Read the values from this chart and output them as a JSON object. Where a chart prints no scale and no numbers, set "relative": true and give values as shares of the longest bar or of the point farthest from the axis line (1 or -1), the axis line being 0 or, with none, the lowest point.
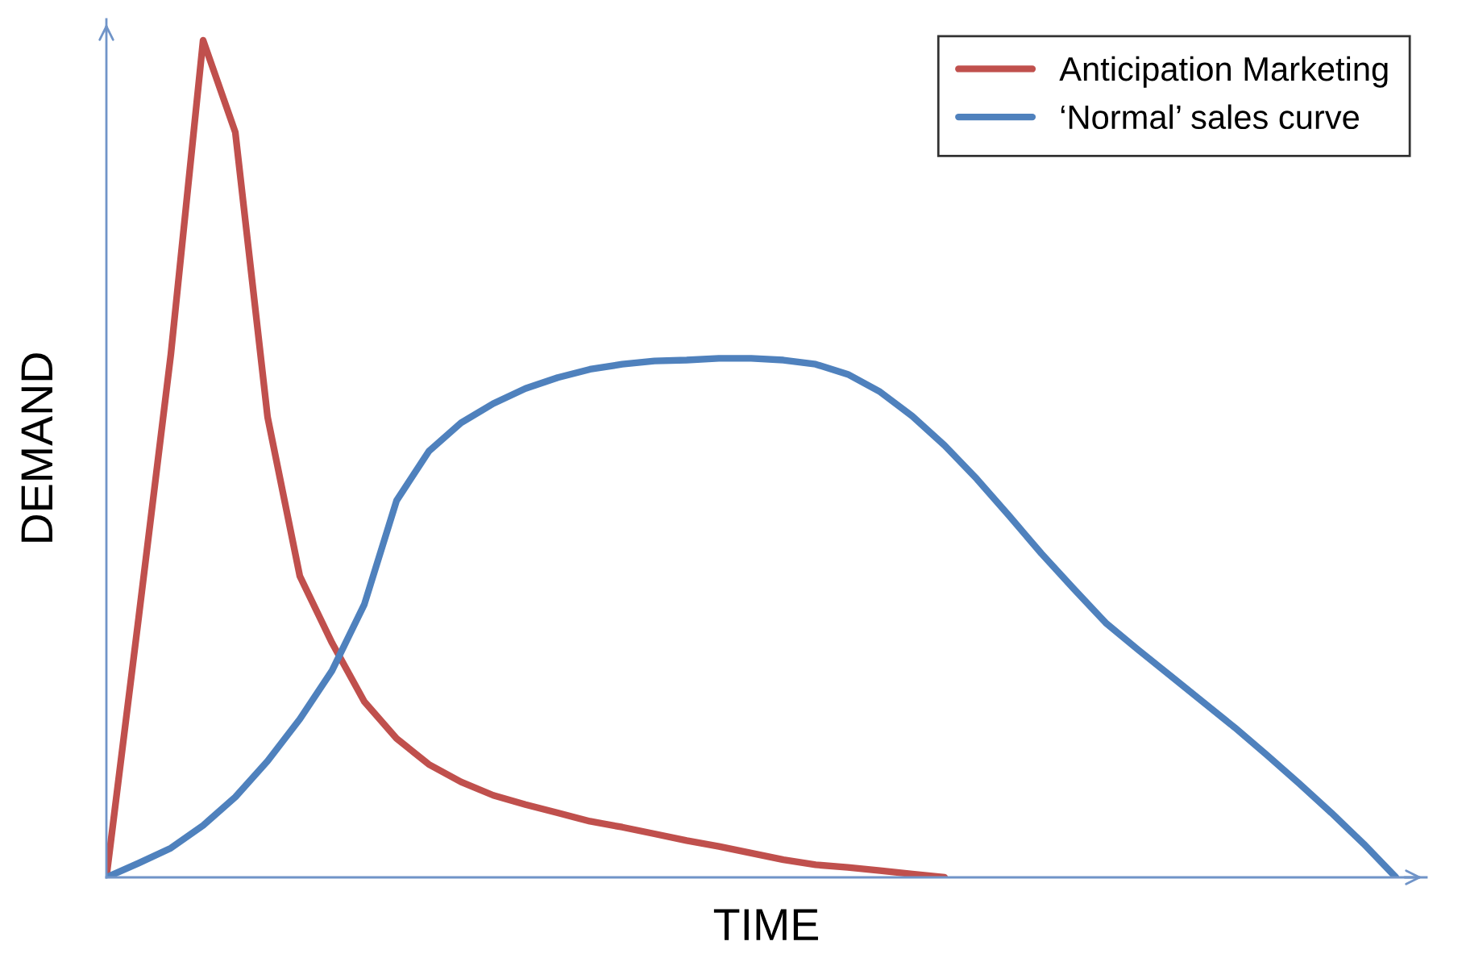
{
  "chart_data": {
    "type": "line",
    "xlabel": "TIME",
    "ylabel": "DEMAND",
    "relative": true,
    "legend": "top right",
    "grid": false,
    "marker": "none",
    "line_style": "solid",
    "categories": [
      null,
      null,
      null,
      null,
      null,
      null,
      null,
      null,
      null,
      null,
      null,
      null,
      null,
      null,
      null,
      null,
      null,
      null,
      null,
      null,
      null,
      null,
      null,
      null,
      null,
      null,
      null,
      null,
      null,
      null,
      null,
      null,
      null,
      null,
      null,
      null,
      null,
      null,
      null,
      null,
      null
    ],
    "series": [
      {
        "name": "Anticipation Marketing",
        "color": "#c0504d",
        "values": [
          0,
          0.31,
          0.625,
          1.0,
          0.89,
          0.55,
          0.36,
          0.28,
          0.21,
          0.166,
          0.135,
          0.114,
          0.098,
          0.087,
          0.077,
          0.067,
          0.06,
          0.052,
          0.044,
          0.037,
          0.029,
          0.021,
          0.015,
          0.012,
          0.008,
          0.004,
          0,
          null,
          null,
          null,
          null,
          null,
          null,
          null,
          null,
          null,
          null,
          null,
          null,
          null,
          null
        ]
      },
      {
        "name": "‘Normal’ sales curve",
        "color": "#4f81bd",
        "values": [
          0,
          0.017,
          0.035,
          0.062,
          0.096,
          0.139,
          0.189,
          0.247,
          0.326,
          0.45,
          0.509,
          0.543,
          0.566,
          0.584,
          0.597,
          0.607,
          0.613,
          0.617,
          0.618,
          0.62,
          0.62,
          0.618,
          0.613,
          0.601,
          0.58,
          0.551,
          0.516,
          0.476,
          0.432,
          0.387,
          0.345,
          0.304,
          0.272,
          0.241,
          0.21,
          0.179,
          0.146,
          0.112,
          0.077,
          0.04,
          0
        ]
      }
    ]
  }
}
